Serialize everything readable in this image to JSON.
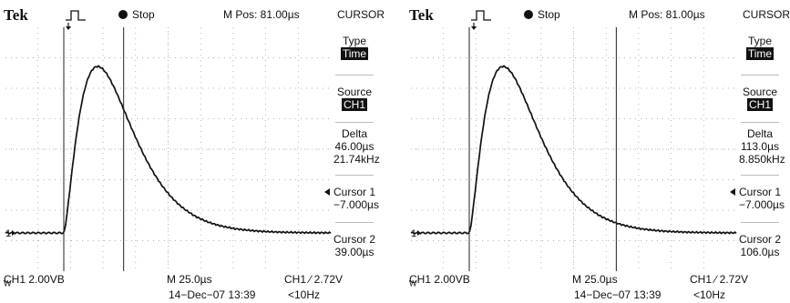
{
  "scopes": [
    {
      "brand": "Tek",
      "state": "Stop",
      "mpos": "M Pos: 81.00µs",
      "menu_title": "CURSOR",
      "type_label": "Type",
      "type_value": "Time",
      "source_label": "Source",
      "source_value": "CH1",
      "delta_label": "Delta",
      "delta_time": "46.00µs",
      "delta_freq": "21.74kHz",
      "cursor1_label": "Cursor 1",
      "cursor1_value": "−7.000µs",
      "cursor2_label": "Cursor 2",
      "cursor2_value": "39.00µs",
      "ch_scale": "CH1  2.00VB",
      "bw_mark": "W",
      "timebase": "M 25.0µs",
      "trigger": "CH1 ∕ 2.72V",
      "date": "14−Dec−07 13:39",
      "freq": "<10Hz",
      "ch_marker": "1",
      "waveform": {
        "cursor1_us": -7.0,
        "cursor2_us": 39.0,
        "peak_us": 19.0
      }
    },
    {
      "brand": "Tek",
      "state": "Stop",
      "mpos": "M Pos: 81.00µs",
      "menu_title": "CURSOR",
      "type_label": "Type",
      "type_value": "Time",
      "source_label": "Source",
      "source_value": "CH1",
      "delta_label": "Delta",
      "delta_time": "113.0µs",
      "delta_freq": "8.850kHz",
      "cursor1_label": "Cursor 1",
      "cursor1_value": "−7.000µs",
      "cursor2_label": "Cursor 2",
      "cursor2_value": "106.0µs",
      "ch_scale": "CH1  2.00VB",
      "bw_mark": "W",
      "timebase": "M 25.0µs",
      "trigger": "CH1 ∕ 2.72V",
      "date": "14−Dec−07 13:39",
      "freq": "<10Hz",
      "ch_marker": "1",
      "waveform": {
        "cursor1_us": -7.0,
        "cursor2_us": 106.0,
        "peak_us": 19.0
      }
    }
  ],
  "icons": {
    "trigger_pulse": "pulse-icon",
    "trigger_arrow": "trigger-pos-arrow-icon",
    "level_arrow": "trigger-level-arrow-icon"
  }
}
